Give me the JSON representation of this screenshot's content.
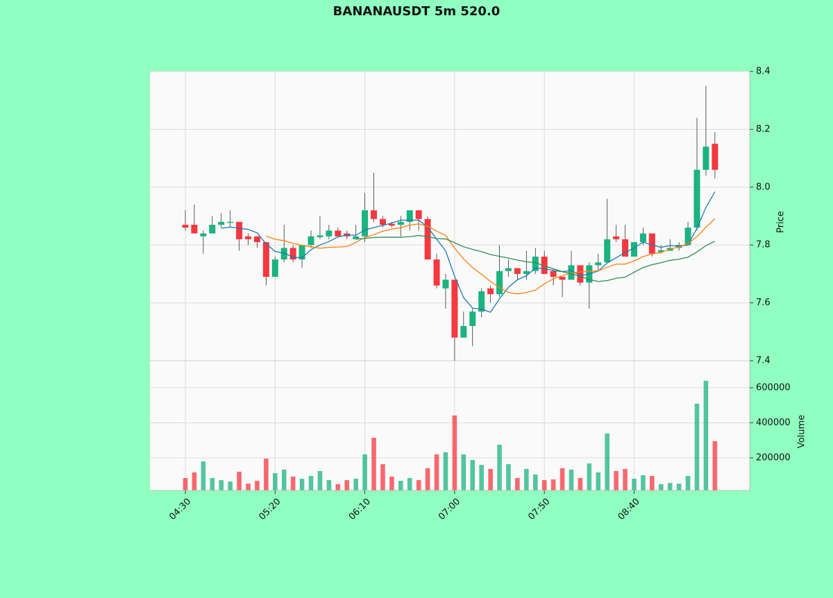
{
  "chart_data": {
    "type": "candlestick",
    "title": "BANANAUSDT 5m 520.0",
    "categories": [
      "04:30",
      null,
      null,
      null,
      null,
      null,
      null,
      null,
      null,
      null,
      "05:20",
      null,
      null,
      null,
      null,
      null,
      null,
      null,
      null,
      null,
      "06:10",
      null,
      null,
      null,
      null,
      null,
      null,
      null,
      null,
      null,
      "07:00",
      null,
      null,
      null,
      null,
      null,
      null,
      null,
      null,
      null,
      "07:50",
      null,
      null,
      null,
      null,
      null,
      null,
      null,
      null,
      null,
      "08:40",
      null,
      null,
      null,
      null,
      null,
      null,
      null,
      null,
      null
    ],
    "open": [
      7.87,
      7.87,
      7.83,
      7.84,
      7.87,
      7.877,
      7.88,
      7.83,
      7.83,
      7.81,
      7.69,
      7.75,
      7.79,
      7.75,
      7.8,
      7.827,
      7.83,
      7.85,
      7.84,
      7.82,
      7.83,
      7.92,
      7.89,
      7.873,
      7.87,
      7.88,
      7.92,
      7.89,
      7.75,
      7.65,
      7.68,
      7.48,
      7.52,
      7.57,
      7.65,
      7.63,
      7.71,
      7.72,
      7.7,
      7.71,
      7.76,
      7.71,
      7.69,
      7.68,
      7.73,
      7.67,
      7.73,
      7.74,
      7.83,
      7.82,
      7.76,
      7.81,
      7.84,
      7.775,
      7.78,
      7.79,
      7.8,
      7.86,
      8.06,
      8.15
    ],
    "high": [
      7.92,
      7.94,
      7.85,
      7.9,
      7.91,
      7.92,
      7.88,
      7.84,
      7.83,
      7.81,
      7.76,
      7.87,
      7.8,
      7.8,
      7.85,
      7.9,
      7.87,
      7.86,
      7.85,
      7.87,
      7.98,
      8.05,
      7.9,
      7.88,
      7.9,
      7.92,
      7.92,
      7.9,
      7.77,
      7.7,
      7.68,
      7.57,
      7.58,
      7.65,
      7.66,
      7.8,
      7.75,
      7.72,
      7.78,
      7.79,
      7.78,
      7.72,
      7.69,
      7.78,
      7.73,
      7.74,
      7.77,
      7.96,
      7.87,
      7.87,
      7.81,
      7.86,
      7.84,
      7.8,
      7.82,
      7.81,
      7.88,
      8.24,
      8.35,
      8.19
    ],
    "low": [
      7.85,
      7.84,
      7.77,
      7.84,
      7.86,
      7.86,
      7.78,
      7.8,
      7.79,
      7.66,
      7.69,
      7.74,
      7.74,
      7.72,
      7.79,
      7.82,
      7.82,
      7.83,
      7.82,
      7.82,
      7.81,
      7.88,
      7.86,
      7.86,
      7.83,
      7.85,
      7.85,
      7.75,
      7.65,
      7.58,
      7.4,
      7.48,
      7.45,
      7.55,
      7.6,
      7.62,
      7.69,
      7.68,
      7.68,
      7.7,
      7.7,
      7.66,
      7.62,
      7.68,
      7.66,
      7.58,
      7.71,
      7.74,
      7.81,
      7.76,
      7.76,
      7.8,
      7.76,
      7.77,
      7.78,
      7.78,
      7.8,
      7.85,
      8.04,
      8.03
    ],
    "close": [
      7.86,
      7.84,
      7.84,
      7.87,
      7.88,
      7.88,
      7.82,
      7.82,
      7.81,
      7.69,
      7.75,
      7.79,
      7.75,
      7.8,
      7.83,
      7.833,
      7.85,
      7.83,
      7.83,
      7.83,
      7.92,
      7.89,
      7.87,
      7.867,
      7.88,
      7.92,
      7.89,
      7.75,
      7.66,
      7.68,
      7.48,
      7.52,
      7.57,
      7.64,
      7.63,
      7.71,
      7.72,
      7.7,
      7.71,
      7.76,
      7.7,
      7.69,
      7.68,
      7.73,
      7.67,
      7.73,
      7.74,
      7.82,
      7.82,
      7.76,
      7.81,
      7.84,
      7.77,
      7.782,
      7.79,
      7.8,
      7.86,
      8.06,
      8.14,
      8.06
    ],
    "volume": [
      85000,
      117000,
      180000,
      85000,
      73000,
      65000,
      121000,
      53000,
      69000,
      196000,
      113000,
      133000,
      93000,
      81000,
      97000,
      125000,
      73000,
      50000,
      73000,
      81000,
      220000,
      315000,
      164000,
      93000,
      69000,
      85000,
      73000,
      141000,
      220000,
      232000,
      442000,
      220000,
      188000,
      160000,
      137000,
      275000,
      164000,
      85000,
      137000,
      105000,
      73000,
      77000,
      141000,
      133000,
      85000,
      168000,
      117000,
      339000,
      125000,
      137000,
      81000,
      101000,
      97000,
      50000,
      57000,
      53000,
      97000,
      509000,
      640000,
      295000
    ],
    "up_color": "#1bb37f",
    "down_color": "#f5383f",
    "series": [
      {
        "color": "#1f77b4",
        "values": [
          null,
          null,
          null,
          null,
          7.858,
          7.862,
          7.858,
          7.854,
          7.842,
          7.804,
          7.778,
          7.772,
          7.758,
          7.756,
          7.784,
          7.8,
          7.812,
          7.828,
          7.834,
          7.834,
          7.852,
          7.86,
          7.868,
          7.876,
          7.886,
          7.886,
          7.886,
          7.862,
          7.82,
          7.78,
          7.692,
          7.618,
          7.582,
          7.578,
          7.568,
          7.614,
          7.654,
          7.68,
          7.694,
          7.72,
          7.718,
          7.712,
          7.708,
          7.712,
          7.694,
          7.7,
          7.71,
          7.738,
          7.756,
          7.774,
          7.79,
          7.81,
          7.8,
          7.792,
          7.798,
          7.796,
          7.8,
          7.858,
          7.93,
          7.984
        ]
      },
      {
        "color": "#ff7f0e",
        "values": [
          null,
          null,
          null,
          null,
          null,
          null,
          null,
          null,
          null,
          7.831,
          7.82,
          7.815,
          7.806,
          7.799,
          7.794,
          7.789,
          7.792,
          7.793,
          7.795,
          7.809,
          7.826,
          7.836,
          7.848,
          7.855,
          7.86,
          7.869,
          7.873,
          7.865,
          7.848,
          7.833,
          7.789,
          7.752,
          7.722,
          7.699,
          7.674,
          7.653,
          7.636,
          7.631,
          7.636,
          7.644,
          7.666,
          7.683,
          7.694,
          7.703,
          7.707,
          7.709,
          7.711,
          7.723,
          7.734,
          7.734,
          7.745,
          7.76,
          7.769,
          7.774,
          7.786,
          7.793,
          7.805,
          7.829,
          7.861,
          7.891
        ]
      },
      {
        "color": "#2e8b57",
        "values": [
          null,
          null,
          null,
          null,
          null,
          null,
          null,
          null,
          null,
          null,
          null,
          null,
          null,
          null,
          null,
          null,
          null,
          null,
          null,
          7.82,
          7.823,
          7.826,
          7.827,
          7.827,
          7.827,
          7.829,
          7.833,
          7.829,
          7.822,
          7.821,
          7.808,
          7.794,
          7.785,
          7.777,
          7.767,
          7.761,
          7.755,
          7.748,
          7.742,
          7.739,
          7.728,
          7.718,
          7.708,
          7.701,
          7.691,
          7.681,
          7.674,
          7.677,
          7.685,
          7.689,
          7.706,
          7.722,
          7.732,
          7.739,
          7.747,
          7.751,
          7.758,
          7.776,
          7.798,
          7.813
        ]
      }
    ],
    "ylabel": "Price",
    "ylim": [
      7.4,
      8.4
    ],
    "yticks": [
      7.4,
      7.6,
      7.8,
      {
        "value": 8,
        "label": "8.0"
      },
      8.2,
      8.4
    ],
    "volume_ylabel": "Volume",
    "volume_ylim": [
      14000,
      754000
    ],
    "volume_yticks": [
      200000,
      400000,
      600000
    ],
    "grid": true
  }
}
